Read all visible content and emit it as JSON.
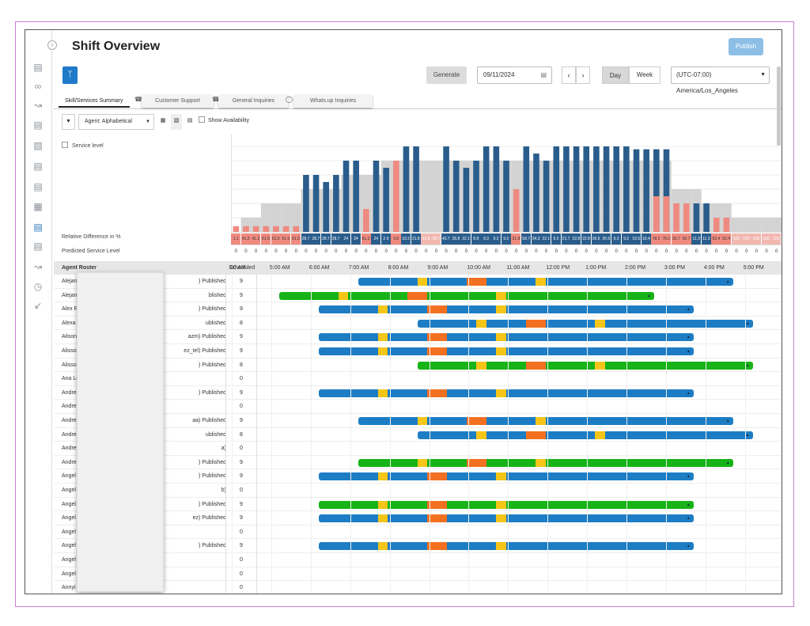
{
  "header": {
    "title": "Shift Overview",
    "publish_label": "Publish"
  },
  "toolbar": {
    "generate_label": "Generate",
    "date_value": "09/11/2024",
    "day_label": "Day",
    "week_label": "Week",
    "timezone_value": "(UTC-07:00) America/Los_Angeles"
  },
  "tabs": [
    {
      "label": "Skill/Services Summary"
    },
    {
      "label": "Customer Support"
    },
    {
      "label": "General Inquiries"
    },
    {
      "label": "Whats.up Inquiries"
    }
  ],
  "filters": {
    "sort_value": "Agent: Alphabetical",
    "show_availability_label": "Show Availability",
    "service_level_label": "Service level"
  },
  "rows_labels": {
    "relative_difference": "Relative Difference in %",
    "predicted_service_level": "Predicted Service Level"
  },
  "relative_difference_values": [
    "1.1",
    "41.2",
    "41.2",
    "61.5",
    "61.5",
    "61.5",
    "61.5",
    "28.7",
    "28.7",
    "28.7",
    "28.7",
    "24",
    "24",
    "61.2",
    "24",
    "2.9",
    "3.8",
    "10.2",
    "21.8",
    "21.8",
    "43.7",
    "43.7",
    "35.8",
    "22.1",
    "8.9",
    "9.3",
    "9.2",
    "9.2",
    "31.8",
    "58.7",
    "34.3",
    "22.1",
    "9.2",
    "21.7",
    "22.8",
    "22.8",
    "26.6",
    "26.6",
    "9.3",
    "9.2",
    "10.5",
    "10.4",
    "78.2",
    "78.2",
    "30.7",
    "30.7",
    "11.3",
    "11.3",
    "52.4",
    "52.4",
    "100",
    "100",
    "100",
    "100",
    "100"
  ],
  "grid": {
    "agent_roster_header": "Agent Roster",
    "scheduled_header": "Scheduled",
    "time_labels": [
      "00 AM",
      "5:00 AM",
      "6:00 AM",
      "7:00 AM",
      "8:00 AM",
      "9:00 AM",
      "10:00 AM",
      "11:00 AM",
      "12:00 PM",
      "1:00 PM",
      "2:00 PM",
      "3:00 PM",
      "4:00 PM",
      "5:00 PM"
    ]
  },
  "agents": [
    {
      "name": "Alejan",
      "status": ") Published",
      "scheduled": "9"
    },
    {
      "name": "Alejan",
      "status": "blished",
      "scheduled": "9"
    },
    {
      "name": "Alex R",
      "status": ") Published",
      "scheduled": "9"
    },
    {
      "name": "Alexa",
      "status": "ublished",
      "scheduled": "8"
    },
    {
      "name": "Alison",
      "status": "azm) Published",
      "scheduled": "9"
    },
    {
      "name": "Alisso",
      "status": "ez_tel) Published",
      "scheduled": "9"
    },
    {
      "name": "Alisso",
      "status": ") Published",
      "scheduled": "8"
    },
    {
      "name": "Ana Le",
      "status": "",
      "scheduled": "0"
    },
    {
      "name": "Andre",
      "status": ") Published",
      "scheduled": "9"
    },
    {
      "name": "Andre",
      "status": "",
      "scheduled": "0"
    },
    {
      "name": "Andre",
      "status": "aa) Published",
      "scheduled": "9"
    },
    {
      "name": "Andre",
      "status": "ublished",
      "scheduled": "8"
    },
    {
      "name": "Andre",
      "status": "a)",
      "scheduled": "0"
    },
    {
      "name": "Andre",
      "status": ") Published",
      "scheduled": "9"
    },
    {
      "name": "Angel",
      "status": ") Published",
      "scheduled": "9"
    },
    {
      "name": "Angel",
      "status": "b)",
      "scheduled": "0"
    },
    {
      "name": "Angel",
      "status": ") Published",
      "scheduled": "9"
    },
    {
      "name": "Angel",
      "status": "ez) Published",
      "scheduled": "9"
    },
    {
      "name": "Angel",
      "status": "",
      "scheduled": "0"
    },
    {
      "name": "Angel",
      "status": ") Published",
      "scheduled": "9"
    },
    {
      "name": "Angel",
      "status": "",
      "scheduled": "0"
    },
    {
      "name": "Angel",
      "status": "",
      "scheduled": "0"
    },
    {
      "name": "Annyi",
      "status": "",
      "scheduled": "0"
    }
  ],
  "shifts": [
    {
      "row": 0,
      "color": "#1d7dc4",
      "start": 8,
      "end": 17.5,
      "breaks": [
        9.5,
        12.5
      ],
      "lunch": [
        10.75,
        11.25
      ]
    },
    {
      "row": 1,
      "color": "#17b317",
      "start": 6,
      "end": 15.5,
      "breaks": [
        7.5,
        11.5
      ],
      "lunch": [
        9.25,
        9.75
      ]
    },
    {
      "row": 2,
      "color": "#1d7dc4",
      "start": 7,
      "end": 16.5,
      "breaks": [
        8.5,
        11.5
      ],
      "lunch": [
        9.75,
        10.25
      ]
    },
    {
      "row": 3,
      "color": "#1d7dc4",
      "start": 9.5,
      "end": 18,
      "breaks": [
        11,
        14
      ],
      "lunch": [
        12.25,
        12.75
      ]
    },
    {
      "row": 4,
      "color": "#1d7dc4",
      "start": 7,
      "end": 16.5,
      "breaks": [
        8.5,
        11.5
      ],
      "lunch": [
        9.75,
        10.25
      ]
    },
    {
      "row": 5,
      "color": "#1d7dc4",
      "start": 7,
      "end": 16.5,
      "breaks": [
        8.5,
        11.5
      ],
      "lunch": [
        9.75,
        10.25
      ]
    },
    {
      "row": 6,
      "color": "#17b317",
      "start": 9.5,
      "end": 18,
      "breaks": [
        11,
        14
      ],
      "lunch": [
        12.25,
        12.75
      ]
    },
    {
      "row": 8,
      "color": "#1d7dc4",
      "start": 7,
      "end": 16.5,
      "breaks": [
        8.5,
        11.5
      ],
      "lunch": [
        9.75,
        10.25
      ]
    },
    {
      "row": 10,
      "color": "#1d7dc4",
      "start": 8,
      "end": 17.5,
      "breaks": [
        9.5,
        12.5
      ],
      "lunch": [
        10.75,
        11.25
      ]
    },
    {
      "row": 11,
      "color": "#1d7dc4",
      "start": 9.5,
      "end": 18,
      "breaks": [
        11,
        14
      ],
      "lunch": [
        12.25,
        12.75
      ]
    },
    {
      "row": 13,
      "color": "#17b317",
      "start": 8,
      "end": 17.5,
      "breaks": [
        9.5,
        12.5
      ],
      "lunch": [
        10.75,
        11.25
      ]
    },
    {
      "row": 14,
      "color": "#1d7dc4",
      "start": 7,
      "end": 16.5,
      "breaks": [
        8.5,
        11.5
      ],
      "lunch": [
        9.75,
        10.25
      ]
    },
    {
      "row": 16,
      "color": "#17b317",
      "start": 7,
      "end": 16.5,
      "breaks": [
        8.5,
        11.5
      ],
      "lunch": [
        9.75,
        10.25
      ]
    },
    {
      "row": 17,
      "color": "#1d7dc4",
      "start": 7,
      "end": 16.5,
      "breaks": [
        8.5,
        11.5
      ],
      "lunch": [
        9.75,
        10.25
      ]
    },
    {
      "row": 19,
      "color": "#1d7dc4",
      "start": 7,
      "end": 16.5,
      "breaks": [
        8.5,
        11.5
      ],
      "lunch": [
        9.75,
        10.25
      ]
    }
  ],
  "chart_data": {
    "type": "bar",
    "series": [
      {
        "name": "required",
        "color": "#d3d3d3",
        "values": [
          0,
          1,
          1,
          2,
          2,
          2,
          2,
          3,
          3,
          3,
          3,
          4,
          4,
          4,
          4,
          5,
          5,
          5,
          5,
          5,
          5,
          5,
          5,
          5,
          5,
          5,
          5,
          5,
          5,
          5,
          5,
          5,
          5,
          5,
          5,
          5,
          5,
          5,
          5,
          5,
          5,
          5,
          5,
          5,
          3,
          3,
          3,
          2,
          2,
          2,
          1,
          1,
          1,
          1,
          1
        ]
      },
      {
        "name": "scheduled",
        "color": "#2a5d8c",
        "values": [
          0,
          0,
          0,
          0,
          0,
          0,
          0,
          4,
          4,
          3.5,
          4,
          5,
          5,
          0,
          5,
          4.5,
          0,
          6,
          6,
          0,
          0,
          6,
          5,
          4.5,
          5,
          6,
          6,
          5,
          0,
          6,
          5.5,
          5,
          6,
          6,
          6,
          6,
          6,
          6,
          6,
          6,
          5.8,
          5.8,
          5.8,
          5.8,
          0,
          0,
          2,
          2,
          0,
          0,
          0,
          0,
          0,
          0,
          0
        ]
      },
      {
        "name": "under",
        "color": "#ef8a80",
        "values": [
          0.4,
          0.4,
          0.4,
          0.4,
          0.4,
          0.4,
          0.4,
          0,
          0,
          0,
          0,
          0,
          0,
          1.6,
          0,
          0,
          5,
          0,
          0,
          0,
          0,
          0,
          0,
          0,
          0,
          0,
          0,
          0,
          3,
          0,
          0,
          0,
          0,
          0,
          0,
          0,
          0,
          0,
          0,
          0,
          0,
          0,
          2.5,
          2.5,
          2,
          2,
          0,
          0,
          1,
          1,
          0,
          0,
          0,
          0,
          0
        ]
      }
    ],
    "ylim": [
      0,
      6.5
    ]
  },
  "colors": {
    "accent": "#1f7ac9",
    "shift_blue": "#1d7dc4",
    "shift_green": "#17b317",
    "lunch": "#f37021",
    "break": "#f5c518"
  }
}
